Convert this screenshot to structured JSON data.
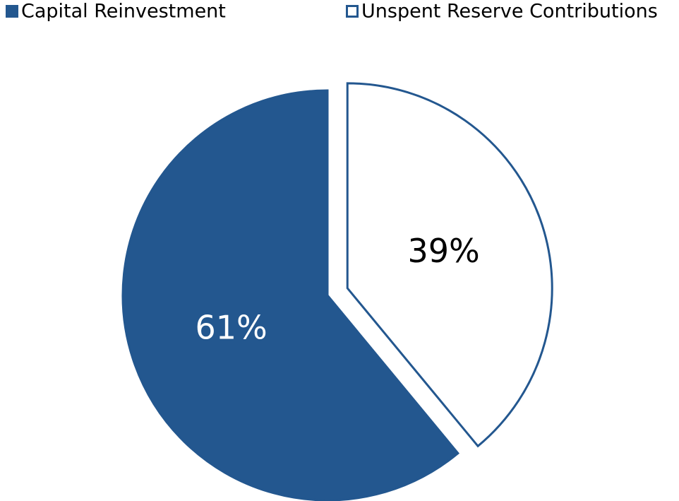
{
  "chart_data": {
    "type": "pie",
    "categories": [
      "Capital Reinvestment",
      "Unspent Reserve Contributions"
    ],
    "values": [
      61,
      39
    ],
    "value_labels": [
      "61%",
      "39%"
    ],
    "colors": [
      "#23578f",
      "#ffffff"
    ],
    "edgecolor": "#23578f",
    "legend": "top"
  }
}
